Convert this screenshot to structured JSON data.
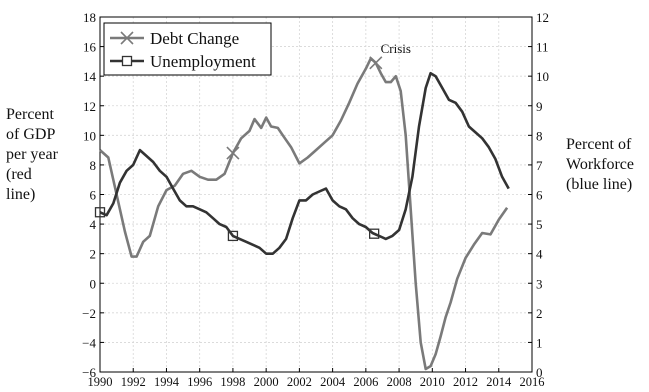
{
  "chart_data": {
    "type": "line",
    "title": "",
    "annotations": [
      {
        "text": "Crisis",
        "x": 2007.8,
        "y": 16.5
      }
    ],
    "left_axis": {
      "label_lines": [
        "Percent",
        "of GDP",
        "per year",
        "(red",
        "line)"
      ],
      "ylim": [
        -6,
        18
      ],
      "ticks": [
        18,
        16,
        14,
        12,
        10,
        8,
        6,
        4,
        2,
        0,
        -2,
        -4,
        -6
      ],
      "tick_labels": [
        "18",
        "16",
        "14",
        "12",
        "10",
        "8",
        "6",
        "4",
        "2",
        "0",
        "−2",
        "−4",
        "−6"
      ]
    },
    "right_axis": {
      "label_lines": [
        "Percent of",
        "Workforce",
        "(blue line)"
      ],
      "ylim": [
        0,
        12
      ],
      "ticks": [
        12,
        11,
        10,
        9,
        8,
        7,
        6,
        5,
        4,
        3,
        2,
        1,
        0
      ],
      "tick_labels": [
        "12",
        "11",
        "10",
        "9",
        "8",
        "7",
        "6",
        "5",
        "4",
        "3",
        "2",
        "1",
        "0"
      ]
    },
    "x_axis": {
      "xlim": [
        1990,
        2016
      ],
      "ticks": [
        1990,
        1992,
        1994,
        1996,
        1998,
        2000,
        2002,
        2004,
        2006,
        2008,
        2010,
        2012,
        2014,
        2016
      ],
      "tick_labels": [
        "1990",
        "1992",
        "1994",
        "1996",
        "1998",
        "2000",
        "2002",
        "2004",
        "2006",
        "2008",
        "2010",
        "2012",
        "2014",
        "2016"
      ]
    },
    "grid": true,
    "legend": {
      "placement": "top-left",
      "entries": [
        "Debt Change",
        "Unemployment"
      ]
    },
    "series": [
      {
        "name": "Debt Change",
        "axis": "left",
        "color": "#7a7a7a",
        "marker": "x",
        "markers_at": [
          1998.0,
          2006.6
        ],
        "x": [
          1990.0,
          1990.5,
          1991.0,
          1991.5,
          1991.9,
          1992.2,
          1992.6,
          1993.0,
          1993.5,
          1994.0,
          1994.5,
          1995.0,
          1995.5,
          1996.0,
          1996.5,
          1997.0,
          1997.5,
          1998.0,
          1998.5,
          1999.0,
          1999.3,
          1999.7,
          2000.0,
          2000.3,
          2000.7,
          2001.0,
          2001.5,
          2002.0,
          2002.5,
          2003.0,
          2003.5,
          2004.0,
          2004.5,
          2005.0,
          2005.5,
          2006.0,
          2006.3,
          2006.6,
          2006.9,
          2007.2,
          2007.5,
          2007.8,
          2008.1,
          2008.4,
          2008.7,
          2009.0,
          2009.3,
          2009.6,
          2009.9,
          2010.2,
          2010.5,
          2010.8,
          2011.1,
          2011.5,
          2012.0,
          2012.5,
          2013.0,
          2013.5,
          2014.0,
          2014.5
        ],
        "y": [
          9.0,
          8.5,
          6.0,
          3.5,
          1.8,
          1.8,
          2.8,
          3.2,
          5.2,
          6.3,
          6.6,
          7.4,
          7.6,
          7.2,
          7.0,
          7.0,
          7.4,
          8.8,
          9.8,
          10.3,
          11.1,
          10.5,
          11.2,
          10.6,
          10.5,
          10.0,
          9.2,
          8.1,
          8.5,
          9.0,
          9.5,
          10.0,
          11.0,
          12.2,
          13.5,
          14.5,
          15.2,
          14.9,
          14.2,
          13.6,
          13.6,
          14.0,
          13.0,
          10.0,
          5.0,
          0.0,
          -4.0,
          -5.8,
          -5.6,
          -4.8,
          -3.6,
          -2.3,
          -1.3,
          0.3,
          1.7,
          2.6,
          3.4,
          3.3,
          4.3,
          5.1
        ]
      },
      {
        "name": "Unemployment",
        "axis": "right",
        "color": "#333333",
        "marker": "square",
        "markers_at": [
          1990.0,
          1998.0,
          2006.5
        ],
        "x": [
          1990.0,
          1990.4,
          1990.8,
          1991.2,
          1991.6,
          1992.0,
          1992.4,
          1992.8,
          1993.2,
          1993.6,
          1994.0,
          1994.4,
          1994.8,
          1995.2,
          1995.6,
          1996.0,
          1996.4,
          1996.8,
          1997.2,
          1997.6,
          1998.0,
          1998.4,
          1998.8,
          1999.2,
          1999.6,
          2000.0,
          2000.4,
          2000.8,
          2001.2,
          2001.6,
          2002.0,
          2002.4,
          2002.8,
          2003.2,
          2003.6,
          2004.0,
          2004.4,
          2004.8,
          2005.2,
          2005.6,
          2006.0,
          2006.4,
          2006.8,
          2007.2,
          2007.6,
          2008.0,
          2008.4,
          2008.8,
          2009.2,
          2009.6,
          2009.9,
          2010.2,
          2010.6,
          2011.0,
          2011.4,
          2011.8,
          2012.2,
          2012.6,
          2013.0,
          2013.4,
          2013.8,
          2014.2,
          2014.6
        ],
        "y": [
          5.4,
          5.3,
          5.7,
          6.4,
          6.8,
          7.0,
          7.5,
          7.3,
          7.1,
          6.8,
          6.6,
          6.2,
          5.8,
          5.6,
          5.6,
          5.5,
          5.4,
          5.2,
          5.0,
          4.9,
          4.6,
          4.5,
          4.4,
          4.3,
          4.2,
          4.0,
          4.0,
          4.2,
          4.5,
          5.2,
          5.8,
          5.8,
          6.0,
          6.1,
          6.2,
          5.8,
          5.6,
          5.5,
          5.2,
          5.0,
          4.9,
          4.7,
          4.6,
          4.5,
          4.6,
          4.8,
          5.5,
          6.6,
          8.3,
          9.6,
          10.1,
          10.0,
          9.6,
          9.2,
          9.1,
          8.8,
          8.3,
          8.1,
          7.9,
          7.6,
          7.2,
          6.6,
          6.2
        ]
      }
    ]
  }
}
